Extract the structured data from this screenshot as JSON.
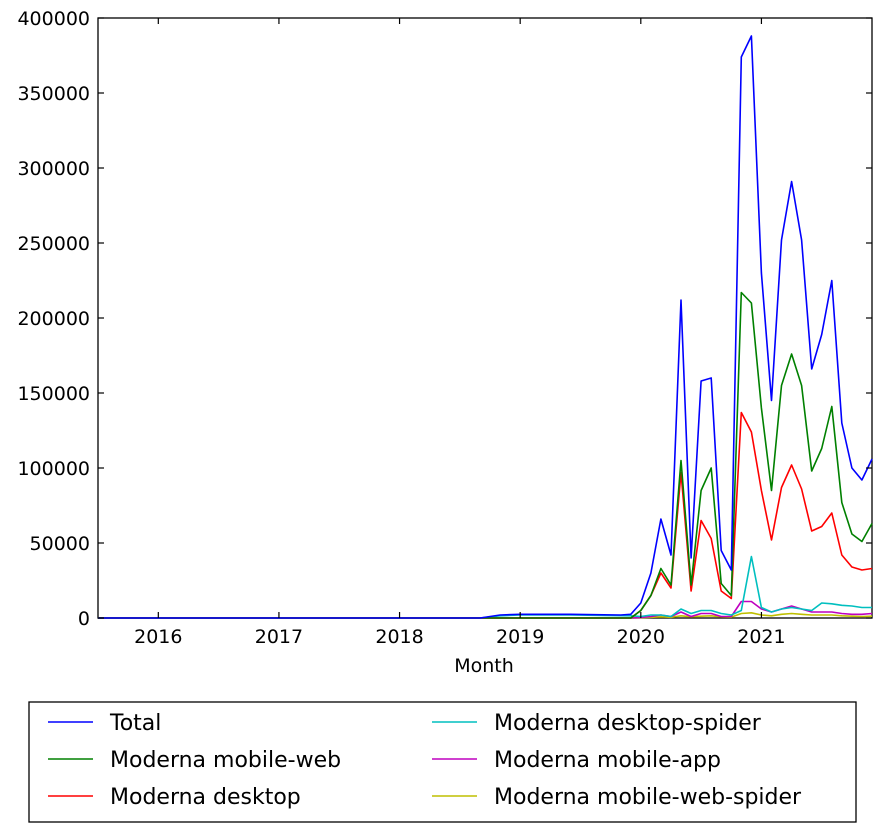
{
  "chart_data": {
    "type": "line",
    "title": "",
    "xlabel": "Month",
    "ylabel": "",
    "xlim": [
      "2015-07",
      "2021-12"
    ],
    "ylim": [
      0,
      400000
    ],
    "y_ticks": [
      "0",
      "50000",
      "100000",
      "150000",
      "200000",
      "250000",
      "300000",
      "350000",
      "400000"
    ],
    "x_ticks": [
      "2016",
      "2017",
      "2018",
      "2019",
      "2020",
      "2021"
    ],
    "grid": false,
    "legend": "below-plot",
    "series": [
      {
        "name": "Total",
        "color": "#0000ff",
        "points": [
          [
            "2015-07",
            0
          ],
          [
            "2018-09",
            0
          ],
          [
            "2018-11",
            2000
          ],
          [
            "2019-01",
            2500
          ],
          [
            "2019-06",
            2500
          ],
          [
            "2019-11",
            2000
          ],
          [
            "2019-12",
            2500
          ],
          [
            "2020-01",
            10000
          ],
          [
            "2020-02",
            30000
          ],
          [
            "2020-03",
            66000
          ],
          [
            "2020-04",
            42000
          ],
          [
            "2020-05",
            212000
          ],
          [
            "2020-06",
            40000
          ],
          [
            "2020-07",
            158000
          ],
          [
            "2020-08",
            160000
          ],
          [
            "2020-09",
            45000
          ],
          [
            "2020-10",
            32000
          ],
          [
            "2020-11",
            374000
          ],
          [
            "2020-12",
            388000
          ],
          [
            "2021-01",
            230000
          ],
          [
            "2021-02",
            145000
          ],
          [
            "2021-03",
            252000
          ],
          [
            "2021-04",
            291000
          ],
          [
            "2021-05",
            252000
          ],
          [
            "2021-06",
            166000
          ],
          [
            "2021-07",
            189000
          ],
          [
            "2021-08",
            225000
          ],
          [
            "2021-09",
            130000
          ],
          [
            "2021-10",
            100000
          ],
          [
            "2021-11",
            92000
          ],
          [
            "2021-12",
            106000
          ]
        ]
      },
      {
        "name": "Moderna mobile-web",
        "color": "#008000",
        "points": [
          [
            "2015-07",
            0
          ],
          [
            "2019-12",
            0
          ],
          [
            "2020-01",
            5000
          ],
          [
            "2020-02",
            15000
          ],
          [
            "2020-03",
            33000
          ],
          [
            "2020-04",
            22000
          ],
          [
            "2020-05",
            105000
          ],
          [
            "2020-06",
            22000
          ],
          [
            "2020-07",
            85000
          ],
          [
            "2020-08",
            100000
          ],
          [
            "2020-09",
            23000
          ],
          [
            "2020-10",
            15000
          ],
          [
            "2020-11",
            217000
          ],
          [
            "2020-12",
            210000
          ],
          [
            "2021-01",
            140000
          ],
          [
            "2021-02",
            85000
          ],
          [
            "2021-03",
            155000
          ],
          [
            "2021-04",
            176000
          ],
          [
            "2021-05",
            155000
          ],
          [
            "2021-06",
            98000
          ],
          [
            "2021-07",
            113000
          ],
          [
            "2021-08",
            141000
          ],
          [
            "2021-09",
            77000
          ],
          [
            "2021-10",
            56000
          ],
          [
            "2021-11",
            51000
          ],
          [
            "2021-12",
            63000
          ]
        ]
      },
      {
        "name": "Moderna desktop",
        "color": "#ff0000",
        "points": [
          [
            "2015-07",
            0
          ],
          [
            "2019-12",
            0
          ],
          [
            "2020-01",
            5000
          ],
          [
            "2020-02",
            15000
          ],
          [
            "2020-03",
            30000
          ],
          [
            "2020-04",
            20000
          ],
          [
            "2020-05",
            97000
          ],
          [
            "2020-06",
            18000
          ],
          [
            "2020-07",
            65000
          ],
          [
            "2020-08",
            53000
          ],
          [
            "2020-09",
            18000
          ],
          [
            "2020-10",
            13000
          ],
          [
            "2020-11",
            137000
          ],
          [
            "2020-12",
            124000
          ],
          [
            "2021-01",
            85000
          ],
          [
            "2021-02",
            52000
          ],
          [
            "2021-03",
            87000
          ],
          [
            "2021-04",
            102000
          ],
          [
            "2021-05",
            86000
          ],
          [
            "2021-06",
            58000
          ],
          [
            "2021-07",
            61000
          ],
          [
            "2021-08",
            70000
          ],
          [
            "2021-09",
            42000
          ],
          [
            "2021-10",
            34000
          ],
          [
            "2021-11",
            32000
          ],
          [
            "2021-12",
            33000
          ]
        ]
      },
      {
        "name": "Moderna desktop-spider",
        "color": "#00bfbf",
        "points": [
          [
            "2015-07",
            0
          ],
          [
            "2018-09",
            0
          ],
          [
            "2018-11",
            1500
          ],
          [
            "2019-01",
            2000
          ],
          [
            "2019-06",
            2000
          ],
          [
            "2019-12",
            1500
          ],
          [
            "2020-01",
            1000
          ],
          [
            "2020-02",
            2000
          ],
          [
            "2020-03",
            2000
          ],
          [
            "2020-04",
            1000
          ],
          [
            "2020-05",
            6000
          ],
          [
            "2020-06",
            3000
          ],
          [
            "2020-07",
            5000
          ],
          [
            "2020-08",
            5000
          ],
          [
            "2020-09",
            3000
          ],
          [
            "2020-10",
            2000
          ],
          [
            "2020-11",
            5000
          ],
          [
            "2020-12",
            41000
          ],
          [
            "2021-01",
            7000
          ],
          [
            "2021-02",
            4000
          ],
          [
            "2021-03",
            6000
          ],
          [
            "2021-04",
            7000
          ],
          [
            "2021-05",
            6000
          ],
          [
            "2021-06",
            5000
          ],
          [
            "2021-07",
            10000
          ],
          [
            "2021-08",
            9500
          ],
          [
            "2021-09",
            8500
          ],
          [
            "2021-10",
            8000
          ],
          [
            "2021-11",
            7000
          ],
          [
            "2021-12",
            7000
          ]
        ]
      },
      {
        "name": "Moderna mobile-app",
        "color": "#bf00bf",
        "points": [
          [
            "2015-07",
            0
          ],
          [
            "2019-12",
            0
          ],
          [
            "2020-01",
            300
          ],
          [
            "2020-02",
            1000
          ],
          [
            "2020-03",
            2000
          ],
          [
            "2020-04",
            1000
          ],
          [
            "2020-05",
            4000
          ],
          [
            "2020-06",
            1000
          ],
          [
            "2020-07",
            3000
          ],
          [
            "2020-08",
            3000
          ],
          [
            "2020-09",
            1000
          ],
          [
            "2020-10",
            1000
          ],
          [
            "2020-11",
            11000
          ],
          [
            "2020-12",
            11000
          ],
          [
            "2021-01",
            6000
          ],
          [
            "2021-02",
            4000
          ],
          [
            "2021-03",
            6000
          ],
          [
            "2021-04",
            8000
          ],
          [
            "2021-05",
            6000
          ],
          [
            "2021-06",
            4000
          ],
          [
            "2021-07",
            4000
          ],
          [
            "2021-08",
            4000
          ],
          [
            "2021-09",
            3000
          ],
          [
            "2021-10",
            2500
          ],
          [
            "2021-11",
            2500
          ],
          [
            "2021-12",
            3000
          ]
        ]
      },
      {
        "name": "Moderna mobile-web-spider",
        "color": "#bfbf00",
        "points": [
          [
            "2015-07",
            0
          ],
          [
            "2019-12",
            0
          ],
          [
            "2020-01",
            200
          ],
          [
            "2020-02",
            500
          ],
          [
            "2020-03",
            800
          ],
          [
            "2020-04",
            500
          ],
          [
            "2020-05",
            1500
          ],
          [
            "2020-06",
            800
          ],
          [
            "2020-07",
            1200
          ],
          [
            "2020-08",
            1500
          ],
          [
            "2020-09",
            800
          ],
          [
            "2020-10",
            600
          ],
          [
            "2020-11",
            3000
          ],
          [
            "2020-12",
            3500
          ],
          [
            "2021-01",
            2000
          ],
          [
            "2021-02",
            1500
          ],
          [
            "2021-03",
            2500
          ],
          [
            "2021-04",
            3000
          ],
          [
            "2021-05",
            2500
          ],
          [
            "2021-06",
            2000
          ],
          [
            "2021-07",
            2000
          ],
          [
            "2021-08",
            2000
          ],
          [
            "2021-09",
            1500
          ],
          [
            "2021-10",
            1200
          ],
          [
            "2021-11",
            1000
          ],
          [
            "2021-12",
            1200
          ]
        ]
      }
    ]
  }
}
